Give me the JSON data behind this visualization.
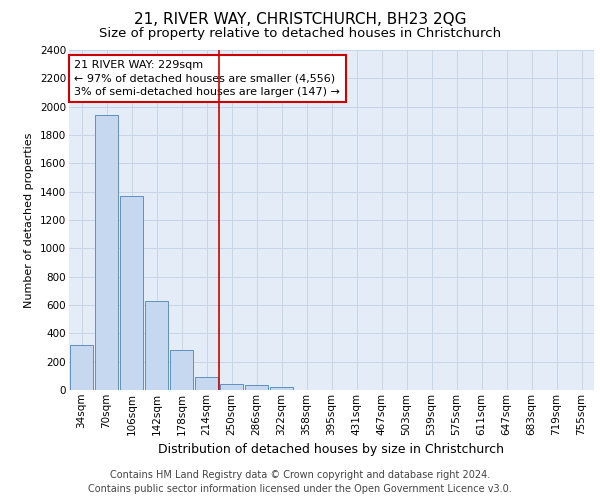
{
  "title": "21, RIVER WAY, CHRISTCHURCH, BH23 2QG",
  "subtitle": "Size of property relative to detached houses in Christchurch",
  "xlabel": "Distribution of detached houses by size in Christchurch",
  "ylabel": "Number of detached properties",
  "categories": [
    "34sqm",
    "70sqm",
    "106sqm",
    "142sqm",
    "178sqm",
    "214sqm",
    "250sqm",
    "286sqm",
    "322sqm",
    "358sqm",
    "395sqm",
    "431sqm",
    "467sqm",
    "503sqm",
    "539sqm",
    "575sqm",
    "611sqm",
    "647sqm",
    "683sqm",
    "719sqm",
    "755sqm"
  ],
  "values": [
    320,
    1940,
    1370,
    630,
    280,
    95,
    45,
    35,
    20,
    0,
    0,
    0,
    0,
    0,
    0,
    0,
    0,
    0,
    0,
    0,
    0
  ],
  "bar_color": "#c5d8f0",
  "bar_edge_color": "#6090c0",
  "vline_x_index": 6,
  "vline_color": "#cc0000",
  "annotation_line1": "21 RIVER WAY: 229sqm",
  "annotation_line2": "← 97% of detached houses are smaller (4,556)",
  "annotation_line3": "3% of semi-detached houses are larger (147) →",
  "annotation_box_facecolor": "white",
  "annotation_box_edgecolor": "#cc0000",
  "ylim_max": 2400,
  "ytick_step": 200,
  "grid_color": "#c8d4e8",
  "plot_bg_color": "#e4ecf7",
  "fig_bg_color": "#ffffff",
  "title_fontsize": 11,
  "subtitle_fontsize": 9.5,
  "xlabel_fontsize": 9,
  "ylabel_fontsize": 8,
  "tick_fontsize": 7.5,
  "annot_fontsize": 8,
  "footer_fontsize": 7,
  "footer_line1": "Contains HM Land Registry data © Crown copyright and database right 2024.",
  "footer_line2": "Contains public sector information licensed under the Open Government Licence v3.0."
}
